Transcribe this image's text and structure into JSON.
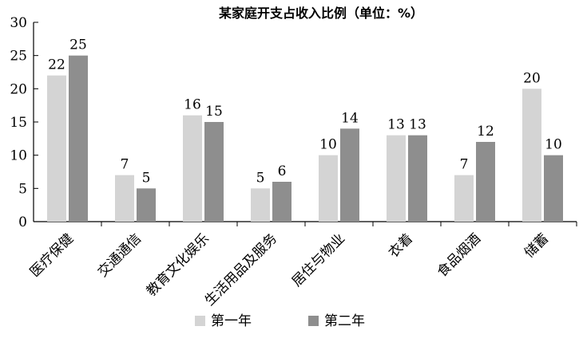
{
  "chart_data": {
    "type": "bar",
    "title": "某家庭开支占收入比例（单位：%）",
    "categories": [
      "医疗保健",
      "交通通信",
      "教育文化娱乐",
      "生活用品及服务",
      "居住与物业",
      "衣着",
      "食品烟酒",
      "储蓄"
    ],
    "series": [
      {
        "name": "第一年",
        "values": [
          22,
          7,
          16,
          5,
          10,
          13,
          7,
          20
        ],
        "color": "#d4d4d4"
      },
      {
        "name": "第二年",
        "values": [
          25,
          5,
          15,
          6,
          14,
          13,
          12,
          10
        ],
        "color": "#8e8e8e"
      }
    ],
    "ylim": [
      0,
      30
    ],
    "yticks": [
      0,
      5,
      10,
      15,
      20,
      25,
      30
    ],
    "grid": false,
    "legend_position": "bottom-center",
    "xlabel": "",
    "ylabel": ""
  }
}
